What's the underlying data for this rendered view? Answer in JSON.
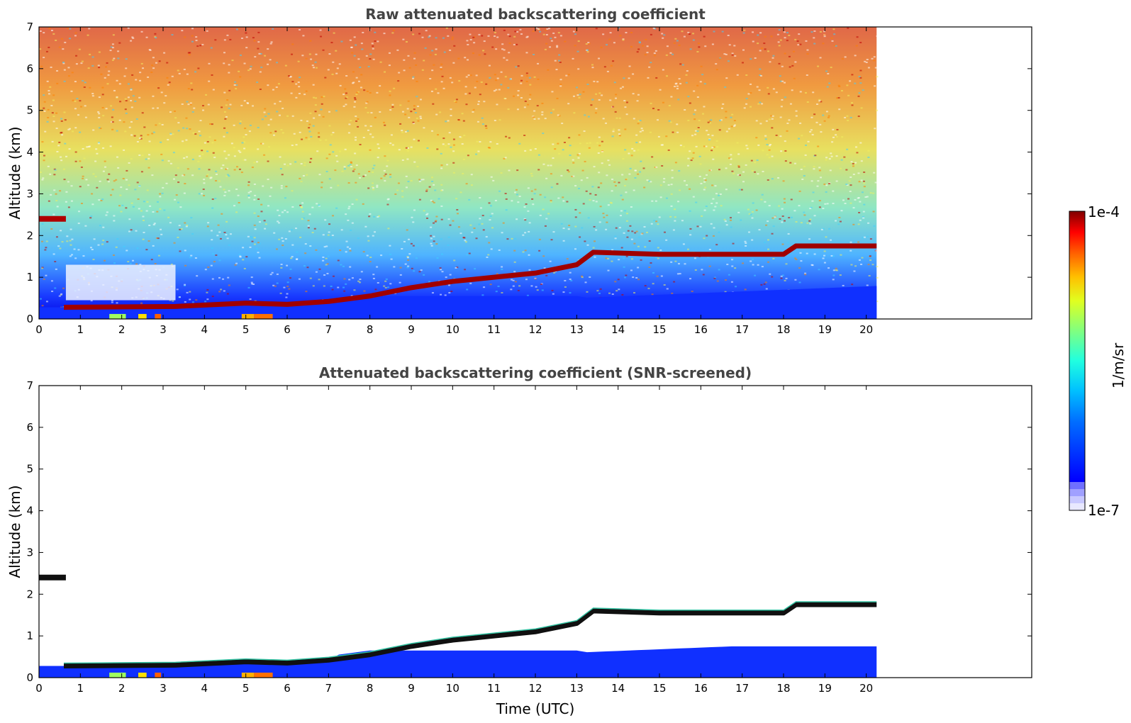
{
  "chart_data": [
    {
      "type": "heatmap",
      "title": "Raw attenuated backscattering coefficient",
      "xlabel": "",
      "ylabel": "Altitude (km)",
      "xlim": [
        0,
        24
      ],
      "ylim": [
        0,
        7
      ],
      "x_ticks": [
        "0",
        "1",
        "2",
        "3",
        "4",
        "5",
        "6",
        "7",
        "8",
        "9",
        "10",
        "11",
        "12",
        "13",
        "14",
        "15",
        "16",
        "17",
        "18",
        "19",
        "20"
      ],
      "y_ticks": [
        "0",
        "1",
        "2",
        "3",
        "4",
        "5",
        "6",
        "7"
      ],
      "data_end_hour": 20.25,
      "boundary_layer_top": [
        [
          0.6,
          0.28
        ],
        [
          3.3,
          0.3
        ],
        [
          5,
          0.38
        ],
        [
          6,
          0.35
        ],
        [
          7,
          0.42
        ],
        [
          8,
          0.55
        ],
        [
          9,
          0.75
        ],
        [
          10,
          0.9
        ],
        [
          10.5,
          0.95
        ],
        [
          11,
          1.0
        ],
        [
          12,
          1.1
        ],
        [
          13,
          1.3
        ],
        [
          13.4,
          1.6
        ],
        [
          15,
          1.55
        ],
        [
          18,
          1.55
        ],
        [
          18.3,
          1.75
        ],
        [
          20.25,
          1.75
        ]
      ],
      "elevated_layer": {
        "x": [
          0,
          0.65
        ],
        "y": 2.4
      }
    },
    {
      "type": "heatmap",
      "title": "Attenuated backscattering coefficient (SNR-screened)",
      "xlabel": "Time (UTC)",
      "ylabel": "Altitude (km)",
      "xlim": [
        0,
        24
      ],
      "ylim": [
        0,
        7
      ],
      "x_ticks": [
        "0",
        "1",
        "2",
        "3",
        "4",
        "5",
        "6",
        "7",
        "8",
        "9",
        "10",
        "11",
        "12",
        "13",
        "14",
        "15",
        "16",
        "17",
        "18",
        "19",
        "20"
      ],
      "y_ticks": [
        "0",
        "1",
        "2",
        "3",
        "4",
        "5",
        "6",
        "7"
      ],
      "data_end_hour": 20.25,
      "boundary_layer_top": [
        [
          0.6,
          0.28
        ],
        [
          3.3,
          0.3
        ],
        [
          5,
          0.38
        ],
        [
          6,
          0.35
        ],
        [
          7,
          0.42
        ],
        [
          8,
          0.55
        ],
        [
          9,
          0.75
        ],
        [
          10,
          0.9
        ],
        [
          10.5,
          0.95
        ],
        [
          11,
          1.0
        ],
        [
          12,
          1.1
        ],
        [
          13,
          1.3
        ],
        [
          13.4,
          1.6
        ],
        [
          15,
          1.55
        ],
        [
          18,
          1.55
        ],
        [
          18.3,
          1.75
        ],
        [
          20.25,
          1.75
        ]
      ],
      "elevated_layer": {
        "x": [
          0,
          0.65
        ],
        "y": 2.4
      }
    }
  ],
  "colorbar": {
    "max_label": "1e-4",
    "min_label": "1e-7",
    "unit_label": "1/m/sr",
    "colors": [
      "#00008f",
      "#0000ff",
      "#0070ff",
      "#00c0ff",
      "#20ffe0",
      "#80ff80",
      "#e0ff20",
      "#ffc000",
      "#ff6000",
      "#ff0000",
      "#800000"
    ],
    "light_levels": [
      "#e8e8ff",
      "#c8c8ff",
      "#a0a0ff",
      "#7070ff"
    ]
  }
}
